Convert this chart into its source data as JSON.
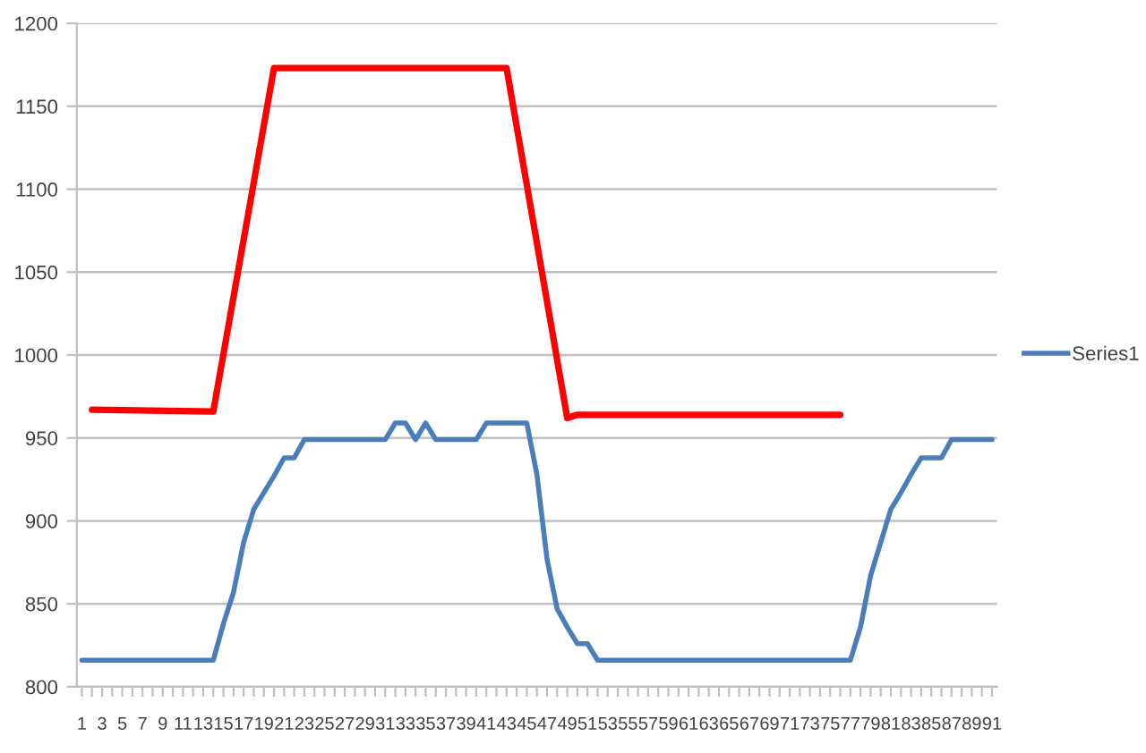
{
  "chart_data": {
    "type": "line",
    "x": [
      1,
      2,
      3,
      4,
      5,
      6,
      7,
      8,
      9,
      10,
      11,
      12,
      13,
      14,
      15,
      16,
      17,
      18,
      19,
      20,
      21,
      22,
      23,
      24,
      25,
      26,
      27,
      28,
      29,
      30,
      31,
      32,
      33,
      34,
      35,
      36,
      37,
      38,
      39,
      40,
      41,
      42,
      43,
      44,
      45,
      46,
      47,
      48,
      49,
      50,
      51,
      52,
      53,
      54,
      55,
      56,
      57,
      58,
      59,
      60,
      61,
      62,
      63,
      64,
      65,
      66,
      67,
      68,
      69,
      70,
      71,
      72,
      73,
      74,
      75,
      76,
      77,
      78,
      79,
      80,
      81,
      82,
      83,
      84,
      85,
      86,
      87,
      88,
      89,
      90,
      91
    ],
    "series": [
      {
        "name": "Series1",
        "color": "#4a7ebb",
        "values": [
          816,
          816,
          816,
          816,
          816,
          816,
          816,
          816,
          816,
          816,
          816,
          816,
          816,
          816,
          838,
          857,
          887,
          907,
          917,
          927,
          938,
          938,
          949,
          949,
          949,
          949,
          949,
          949,
          949,
          949,
          949,
          959,
          959,
          949,
          959,
          949,
          949,
          949,
          949,
          949,
          959,
          959,
          959,
          959,
          959,
          928,
          877,
          847,
          836,
          826,
          826,
          816,
          816,
          816,
          816,
          816,
          816,
          816,
          816,
          816,
          816,
          816,
          816,
          816,
          816,
          816,
          816,
          816,
          816,
          816,
          816,
          816,
          816,
          816,
          816,
          816,
          816,
          836,
          867,
          887,
          907,
          917,
          928,
          938,
          938,
          938,
          949,
          949,
          949,
          949,
          949
        ]
      },
      {
        "color": "#ff0000",
        "x": [
          2,
          14,
          20,
          43,
          49,
          50,
          76
        ],
        "values": [
          967,
          966,
          1173,
          1173,
          962,
          964,
          964
        ]
      }
    ],
    "xlim": [
      0.5,
      91.5
    ],
    "xticks": [
      1,
      {
        "value": 2,
        "label": null
      },
      3,
      {
        "value": 4,
        "label": null
      },
      5,
      {
        "value": 6,
        "label": null
      },
      7,
      {
        "value": 8,
        "label": null
      },
      9,
      {
        "value": 10,
        "label": null
      },
      11,
      {
        "value": 12,
        "label": null
      },
      13,
      {
        "value": 14,
        "label": null
      },
      15,
      {
        "value": 16,
        "label": null
      },
      17,
      {
        "value": 18,
        "label": null
      },
      19,
      {
        "value": 20,
        "label": null
      },
      21,
      {
        "value": 22,
        "label": null
      },
      23,
      {
        "value": 24,
        "label": null
      },
      25,
      {
        "value": 26,
        "label": null
      },
      27,
      {
        "value": 28,
        "label": null
      },
      29,
      {
        "value": 30,
        "label": null
      },
      31,
      {
        "value": 32,
        "label": null
      },
      33,
      {
        "value": 34,
        "label": null
      },
      35,
      {
        "value": 36,
        "label": null
      },
      37,
      {
        "value": 38,
        "label": null
      },
      39,
      {
        "value": 40,
        "label": null
      },
      41,
      {
        "value": 42,
        "label": null
      },
      43,
      {
        "value": 44,
        "label": null
      },
      45,
      {
        "value": 46,
        "label": null
      },
      47,
      {
        "value": 48,
        "label": null
      },
      49,
      {
        "value": 50,
        "label": null
      },
      51,
      {
        "value": 52,
        "label": null
      },
      53,
      {
        "value": 54,
        "label": null
      },
      55,
      {
        "value": 56,
        "label": null
      },
      57,
      {
        "value": 58,
        "label": null
      },
      59,
      {
        "value": 60,
        "label": null
      },
      61,
      {
        "value": 62,
        "label": null
      },
      63,
      {
        "value": 64,
        "label": null
      },
      65,
      {
        "value": 66,
        "label": null
      },
      67,
      {
        "value": 68,
        "label": null
      },
      69,
      {
        "value": 70,
        "label": null
      },
      71,
      {
        "value": 72,
        "label": null
      },
      73,
      {
        "value": 74,
        "label": null
      },
      75,
      {
        "value": 76,
        "label": null
      },
      77,
      {
        "value": 78,
        "label": null
      },
      79,
      {
        "value": 80,
        "label": null
      },
      81,
      {
        "value": 82,
        "label": null
      },
      83,
      {
        "value": 84,
        "label": null
      },
      85,
      {
        "value": 86,
        "label": null
      },
      87,
      {
        "value": 88,
        "label": null
      },
      89,
      {
        "value": 90,
        "label": null
      },
      91
    ],
    "ylim": [
      800,
      1200
    ],
    "yticks": [
      800,
      850,
      900,
      950,
      1000,
      1050,
      1100,
      1150,
      1200
    ],
    "grid": "y",
    "legend": "right"
  }
}
